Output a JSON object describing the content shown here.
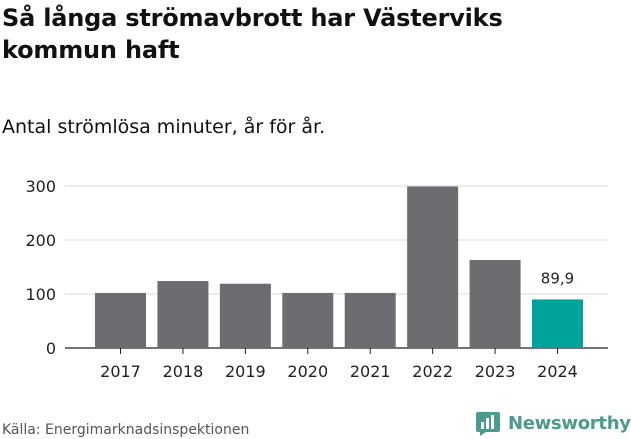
{
  "title": "Så långa strömavbrott har Västerviks kommun haft",
  "subtitle": "Antal strömlösa minuter, år för år.",
  "source": "Källa: Energimarknadsinspektionen",
  "brand": {
    "name": "Newsworthy",
    "color": "#4c9a8c"
  },
  "colors": {
    "bar": "#6d6c71",
    "highlight": "#00a39b",
    "grid": "#d9d9d9",
    "axis": "#222222"
  },
  "chart_data": {
    "type": "bar",
    "categories": [
      "2017",
      "2018",
      "2019",
      "2020",
      "2021",
      "2022",
      "2023",
      "2024"
    ],
    "values": [
      102,
      124,
      119,
      102,
      102,
      299,
      163,
      89.9
    ],
    "highlight_index": 7,
    "data_labels": [
      {
        "index": 7,
        "text": "89,9"
      }
    ],
    "ylim": [
      0,
      300
    ],
    "yticks": [
      0,
      100,
      200,
      300
    ],
    "xlabel": "",
    "ylabel": "",
    "grid": true
  }
}
